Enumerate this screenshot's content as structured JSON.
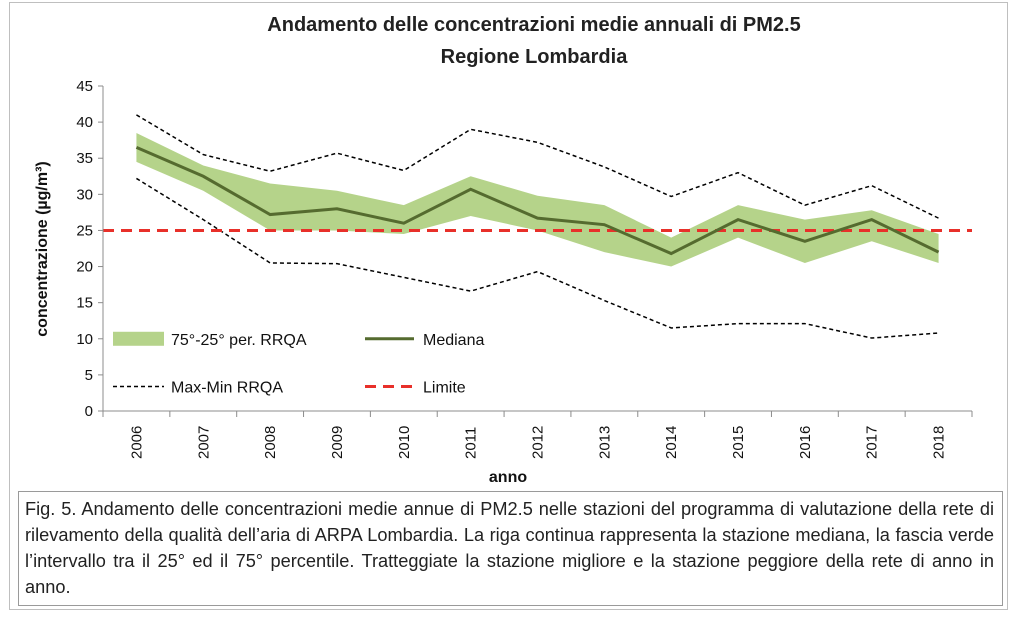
{
  "chart_data": {
    "type": "line",
    "title": "Andamento delle concentrazioni medie annuali di PM2.5",
    "subtitle": "Regione Lombardia",
    "xlabel": "anno",
    "ylabel": "concentrazione (µg/m³)",
    "ylim": [
      0,
      45
    ],
    "yticks": [
      0,
      5,
      10,
      15,
      20,
      25,
      30,
      35,
      40,
      45
    ],
    "categories": [
      "2006",
      "2007",
      "2008",
      "2009",
      "2010",
      "2011",
      "2012",
      "2013",
      "2014",
      "2015",
      "2016",
      "2017",
      "2018"
    ],
    "grid": false,
    "legend_placement": "bottom-left",
    "band": {
      "name": "75°-25° per. RRQA",
      "color": "#b5d38a",
      "upper": [
        38.5,
        34.0,
        31.5,
        30.5,
        28.5,
        32.5,
        29.8,
        28.5,
        24.0,
        28.5,
        26.5,
        27.8,
        24.5
      ],
      "lower": [
        34.5,
        30.5,
        25.0,
        25.0,
        24.5,
        27.0,
        25.0,
        22.0,
        20.0,
        24.0,
        20.5,
        23.5,
        20.5
      ]
    },
    "series": [
      {
        "name": "Mediana",
        "style": "solid",
        "color": "#556b2f",
        "values": [
          36.5,
          32.5,
          27.2,
          28.0,
          26.0,
          30.7,
          26.7,
          25.8,
          21.8,
          26.5,
          23.5,
          26.5,
          22.0
        ]
      },
      {
        "name": "Max-Min RRQA",
        "style": "dotted",
        "color": "#000000",
        "values": [
          41.0,
          35.5,
          33.2,
          35.7,
          33.3,
          39.0,
          37.2,
          33.8,
          29.7,
          33.0,
          28.5,
          31.2,
          26.7
        ]
      },
      {
        "name": "",
        "style": "dotted",
        "color": "#000000",
        "values": [
          32.2,
          26.5,
          20.5,
          20.4,
          18.5,
          16.6,
          19.3,
          15.3,
          11.5,
          12.1,
          12.1,
          10.1,
          10.8
        ]
      },
      {
        "name": "Limite",
        "style": "dashed",
        "color": "#e8302a",
        "values": [
          25,
          25,
          25,
          25,
          25,
          25,
          25,
          25,
          25,
          25,
          25,
          25,
          25
        ]
      }
    ]
  },
  "caption": "Fig. 5. Andamento delle concentrazioni medie annue di PM2.5 nelle stazioni del programma di valutazione della rete di rilevamento della qualità dell’aria di ARPA Lombardia. La riga continua rappresenta la stazione mediana, la fascia verde l’intervallo tra il 25° ed il 75° percentile. Tratteggiate la stazione migliore e la stazione peggiore della rete di anno in anno."
}
